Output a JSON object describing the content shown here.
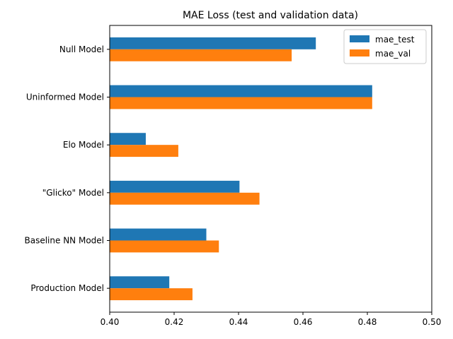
{
  "chart_data": {
    "type": "bar",
    "orientation": "horizontal",
    "title": "MAE Loss (test and validation data)",
    "xlabel": "",
    "ylabel": "",
    "categories": [
      "Null Model",
      "Uninformed Model",
      "Elo Model",
      "\"Glicko\" Model",
      "Baseline NN Model",
      "Production Model"
    ],
    "series": [
      {
        "name": "mae_test",
        "color": "#1f77b4",
        "values": [
          0.464,
          0.4815,
          0.4112,
          0.4403,
          0.43,
          0.4185
        ]
      },
      {
        "name": "mae_val",
        "color": "#ff7f0e",
        "values": [
          0.4565,
          0.4815,
          0.4213,
          0.4465,
          0.4339,
          0.4257
        ]
      }
    ],
    "xlim": [
      0.4,
      0.5
    ],
    "xticks": [
      0.4,
      0.42,
      0.44,
      0.46,
      0.48,
      0.5
    ],
    "xtick_labels": [
      "0.40",
      "0.42",
      "0.44",
      "0.46",
      "0.48",
      "0.50"
    ],
    "grid": false,
    "legend": "top-right"
  }
}
